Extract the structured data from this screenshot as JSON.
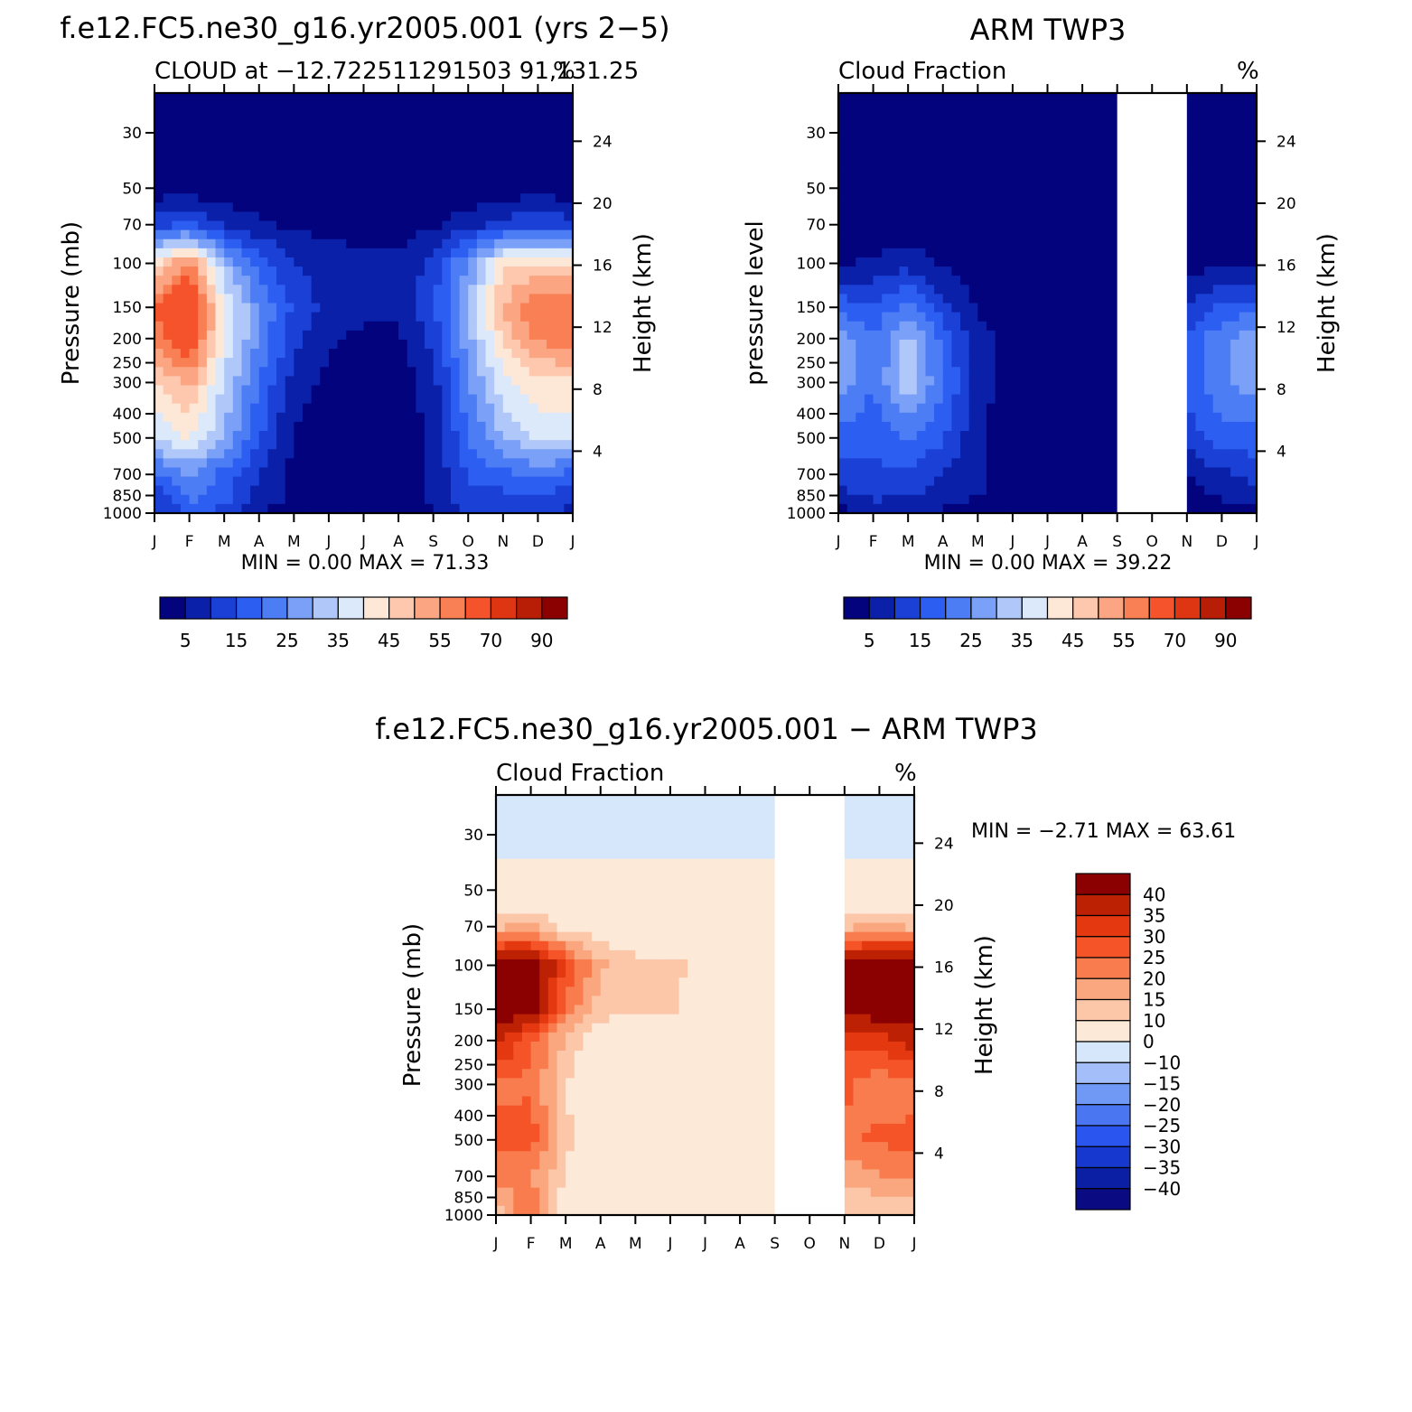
{
  "chart_data": [
    {
      "id": "model",
      "type": "heatmap",
      "title": "f.e12.FC5.ne30_g16.yr2005.001 (yrs 2−5)",
      "subtitle": "CLOUD at −12.722511291503 91,131.25",
      "units": "%",
      "xlabel": "",
      "ylabel": "Pressure (mb)",
      "ylabel_right": "Height (km)",
      "months": [
        "J",
        "F",
        "M",
        "A",
        "M",
        "J",
        "J",
        "A",
        "S",
        "O",
        "N",
        "D",
        "J"
      ],
      "pressure_ticks": [
        "30",
        "50",
        "70",
        "100",
        "150",
        "200",
        "250",
        "300",
        "400",
        "500",
        "700",
        "850",
        "1000"
      ],
      "height_ticks": [
        "24",
        "20",
        "16",
        "12",
        "8",
        "4"
      ],
      "stats": "MIN =    0.00  MAX =   71.33",
      "missing_months": [],
      "field_levels_hPa": [
        1000,
        850,
        700,
        500,
        300,
        200,
        150,
        100,
        70,
        50,
        30
      ],
      "field": [
        [
          8,
          16,
          12,
          5,
          3,
          2,
          2,
          2,
          5,
          11,
          9,
          12,
          8
        ],
        [
          12,
          22,
          18,
          8,
          4,
          2,
          2,
          2,
          6,
          14,
          14,
          16,
          12
        ],
        [
          18,
          25,
          18,
          10,
          4,
          2,
          2,
          2,
          6,
          16,
          18,
          22,
          18
        ],
        [
          36,
          40,
          30,
          16,
          4,
          2,
          1,
          2,
          6,
          20,
          30,
          36,
          36
        ],
        [
          44,
          52,
          34,
          20,
          8,
          3,
          1,
          2,
          8,
          24,
          38,
          44,
          44
        ],
        [
          58,
          66,
          40,
          24,
          12,
          6,
          4,
          4,
          12,
          28,
          46,
          56,
          58
        ],
        [
          60,
          71,
          40,
          24,
          14,
          8,
          6,
          6,
          14,
          30,
          50,
          60,
          60
        ],
        [
          44,
          56,
          30,
          18,
          10,
          8,
          6,
          6,
          12,
          26,
          44,
          46,
          44
        ],
        [
          12,
          16,
          10,
          6,
          4,
          3,
          3,
          3,
          4,
          8,
          12,
          14,
          12
        ],
        [
          2,
          2,
          1,
          1,
          1,
          1,
          1,
          1,
          1,
          1,
          2,
          2,
          2
        ],
        [
          1,
          1,
          1,
          1,
          1,
          1,
          1,
          1,
          1,
          1,
          1,
          1,
          1
        ]
      ]
    },
    {
      "id": "obs",
      "type": "heatmap",
      "title": "ARM TWP3",
      "subtitle": "Cloud Fraction",
      "units": "%",
      "xlabel": "",
      "ylabel": "pressure level",
      "ylabel_right": "Height (km)",
      "months": [
        "J",
        "F",
        "M",
        "A",
        "M",
        "J",
        "J",
        "A",
        "S",
        "O",
        "N",
        "D",
        "J"
      ],
      "pressure_ticks": [
        "30",
        "50",
        "70",
        "100",
        "150",
        "200",
        "250",
        "300",
        "400",
        "500",
        "700",
        "850",
        "1000"
      ],
      "height_ticks": [
        "24",
        "20",
        "16",
        "12",
        "8",
        "4"
      ],
      "stats": "MIN =    0.00  MAX =   39.22",
      "missing_months": [
        8,
        10
      ],
      "field_levels_hPa": [
        1000,
        850,
        700,
        500,
        300,
        200,
        150,
        100,
        70,
        50,
        30
      ],
      "field": [
        [
          3,
          5,
          5,
          4,
          2,
          1,
          1,
          1,
          1,
          1,
          1,
          2,
          3
        ],
        [
          8,
          12,
          10,
          8,
          5,
          4,
          1,
          1,
          1,
          1,
          1,
          6,
          8
        ],
        [
          12,
          14,
          14,
          10,
          6,
          2,
          1,
          1,
          1,
          1,
          6,
          9,
          12
        ],
        [
          18,
          16,
          20,
          16,
          6,
          1,
          1,
          1,
          1,
          1,
          12,
          18,
          18
        ],
        [
          28,
          20,
          34,
          20,
          8,
          1,
          1,
          1,
          1,
          1,
          16,
          24,
          28
        ],
        [
          28,
          20,
          32,
          18,
          8,
          1,
          1,
          1,
          1,
          1,
          16,
          24,
          28
        ],
        [
          18,
          16,
          22,
          12,
          4,
          1,
          1,
          1,
          1,
          1,
          10,
          16,
          18
        ],
        [
          4,
          6,
          8,
          4,
          2,
          1,
          1,
          1,
          1,
          1,
          3,
          4,
          4
        ],
        [
          1,
          1,
          1,
          1,
          1,
          1,
          1,
          1,
          1,
          1,
          1,
          1,
          1
        ],
        [
          1,
          1,
          1,
          1,
          1,
          1,
          1,
          1,
          1,
          1,
          1,
          1,
          1
        ],
        [
          1,
          1,
          1,
          1,
          1,
          1,
          1,
          1,
          1,
          1,
          1,
          1,
          1
        ]
      ]
    },
    {
      "id": "diff",
      "type": "heatmap",
      "title": "f.e12.FC5.ne30_g16.yr2005.001 − ARM TWP3",
      "subtitle": "Cloud Fraction",
      "units": "%",
      "xlabel": "",
      "ylabel": "Pressure (mb)",
      "ylabel_right": "Height (km)",
      "months": [
        "J",
        "F",
        "M",
        "A",
        "M",
        "J",
        "J",
        "A",
        "S",
        "O",
        "N",
        "D",
        "J"
      ],
      "pressure_ticks": [
        "30",
        "50",
        "70",
        "100",
        "150",
        "200",
        "250",
        "300",
        "400",
        "500",
        "700",
        "850",
        "1000"
      ],
      "height_ticks": [
        "24",
        "20",
        "16",
        "12",
        "8",
        "4"
      ],
      "stats": "MIN =   −2.71  MAX =   63.61",
      "missing_months": [
        8,
        10
      ],
      "field_levels_hPa": [
        1000,
        850,
        700,
        500,
        300,
        200,
        150,
        100,
        70,
        50,
        30
      ],
      "field": [
        [
          12,
          26,
          6,
          2,
          2,
          2,
          2,
          2,
          2,
          2,
          10,
          14,
          12
        ],
        [
          16,
          24,
          6,
          4,
          2,
          2,
          2,
          2,
          2,
          2,
          12,
          14,
          16
        ],
        [
          22,
          20,
          10,
          2,
          1,
          1,
          2,
          2,
          2,
          2,
          16,
          20,
          22
        ],
        [
          26,
          28,
          12,
          2,
          2,
          2,
          2,
          2,
          2,
          2,
          24,
          26,
          26
        ],
        [
          24,
          24,
          10,
          4,
          2,
          2,
          2,
          2,
          2,
          2,
          26,
          22,
          24
        ],
        [
          38,
          26,
          14,
          6,
          6,
          4,
          4,
          4,
          4,
          4,
          32,
          32,
          38
        ],
        [
          44,
          44,
          24,
          12,
          10,
          12,
          4,
          4,
          4,
          4,
          40,
          44,
          44
        ],
        [
          46,
          46,
          30,
          16,
          12,
          12,
          8,
          4,
          4,
          4,
          44,
          48,
          46
        ],
        [
          14,
          16,
          8,
          6,
          4,
          4,
          2,
          2,
          2,
          2,
          14,
          16,
          14
        ],
        [
          2,
          2,
          2,
          2,
          2,
          2,
          2,
          2,
          2,
          2,
          2,
          2,
          2
        ],
        [
          -2,
          -2,
          -2,
          -2,
          -2,
          -2,
          -2,
          -2,
          -2,
          -2,
          -2,
          -2,
          -2
        ]
      ]
    }
  ],
  "colorbar_seq": {
    "labels": [
      "5",
      "15",
      "25",
      "35",
      "45",
      "55",
      "70",
      "90"
    ],
    "colors": [
      "#02037d",
      "#0b20a8",
      "#1a40d6",
      "#2d5ef2",
      "#4d7df5",
      "#7aa0f7",
      "#b0c7fa",
      "#dce9fb",
      "#fde8d8",
      "#fdc8ae",
      "#fba582",
      "#f97f55",
      "#f5532b",
      "#de3512",
      "#b81e06",
      "#8b0000"
    ],
    "thresholds": [
      5,
      10,
      15,
      20,
      25,
      30,
      35,
      40,
      45,
      50,
      55,
      60,
      70,
      80,
      90
    ]
  },
  "colorbar_div": {
    "labels": [
      "40",
      "35",
      "30",
      "25",
      "20",
      "15",
      "10",
      "0",
      "−10",
      "−15",
      "−20",
      "−25",
      "−30",
      "−35",
      "−40"
    ],
    "colors": [
      "#0a0a82",
      "#0b1fa4",
      "#1738ce",
      "#2a55ee",
      "#4a76f2",
      "#7099f5",
      "#a3bef8",
      "#d6e7fb",
      "#fde9d8",
      "#fcc7a8",
      "#faa77f",
      "#f97c4e",
      "#f45427",
      "#e43810",
      "#bd2104",
      "#8b0000"
    ],
    "thresholds": [
      -40,
      -35,
      -30,
      -25,
      -20,
      -15,
      -10,
      0,
      10,
      15,
      20,
      25,
      30,
      35,
      40
    ]
  },
  "colors": {
    "missing": "#ffffff",
    "axis": "#000000"
  }
}
